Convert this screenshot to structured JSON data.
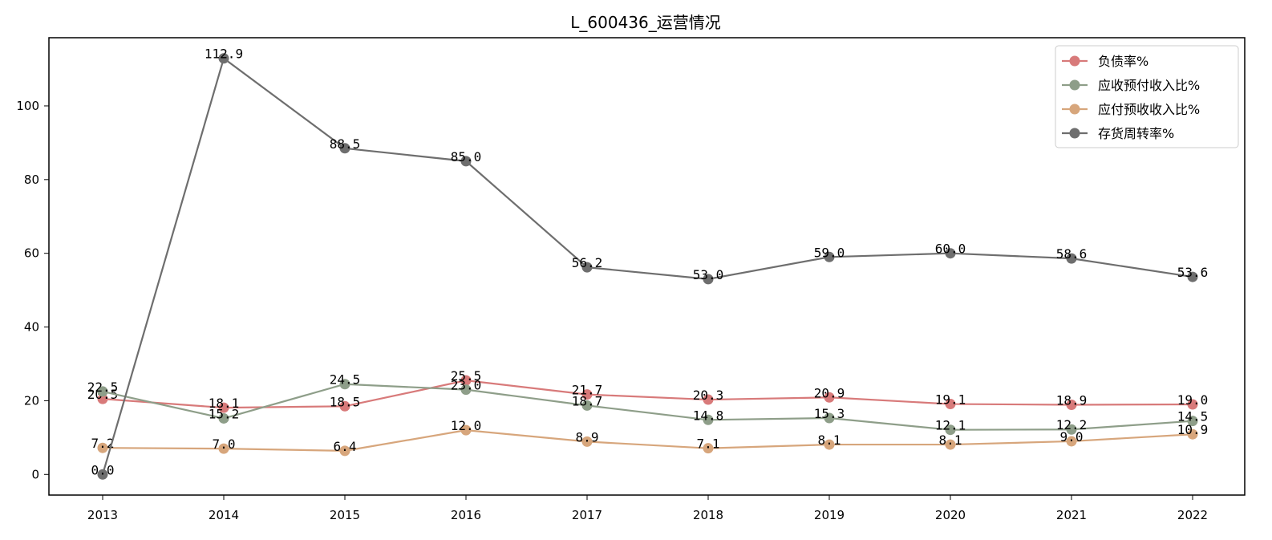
{
  "chart_data": {
    "type": "line",
    "title": "L_600436_运营情况",
    "xlabel": "",
    "ylabel": "",
    "categories": [
      "2013",
      "2014",
      "2015",
      "2016",
      "2017",
      "2018",
      "2019",
      "2020",
      "2021",
      "2022"
    ],
    "y_ticks": [
      0,
      20,
      40,
      60,
      80,
      100
    ],
    "ylim": [
      -5.6,
      118.5
    ],
    "grid": false,
    "legend_position": "top-right",
    "series": [
      {
        "name": "负债率%",
        "color": "#d87a7a",
        "values": [
          20.5,
          18.1,
          18.5,
          25.5,
          21.7,
          20.3,
          20.9,
          19.1,
          18.9,
          19.0
        ],
        "labels": [
          "20.5",
          "18.1",
          "18.5",
          "25.5",
          "21.7",
          "20.3",
          "20.9",
          "19.1",
          "18.9",
          "19.0"
        ]
      },
      {
        "name": "应收预付收入比%",
        "color": "#8e9e89",
        "values": [
          22.5,
          15.2,
          24.5,
          23.0,
          18.7,
          14.8,
          15.3,
          12.1,
          12.2,
          14.5
        ],
        "labels": [
          "22.5",
          "15.2",
          "24.5",
          "23.0",
          "18.7",
          "14.8",
          "15.3",
          "12.1",
          "12.2",
          "14.5"
        ]
      },
      {
        "name": "应付预收收入比%",
        "color": "#d7a67c",
        "values": [
          7.2,
          7.0,
          6.4,
          12.0,
          8.9,
          7.1,
          8.1,
          8.1,
          9.0,
          10.9
        ],
        "labels": [
          "7.2",
          "7.0",
          "6.4",
          "12.0",
          "8.9",
          "7.1",
          "8.1",
          "8.1",
          "9.0",
          "10.9"
        ]
      },
      {
        "name": "存货周转率%",
        "color": "#6e6e6e",
        "values": [
          0.0,
          112.9,
          88.5,
          85.0,
          56.2,
          53.0,
          59.0,
          60.0,
          58.6,
          53.6
        ],
        "labels": [
          "0.0",
          "112.9",
          "88.5",
          "85.0",
          "56.2",
          "53.0",
          "59.0",
          "60.0",
          "58.6",
          "53.6"
        ]
      }
    ]
  }
}
